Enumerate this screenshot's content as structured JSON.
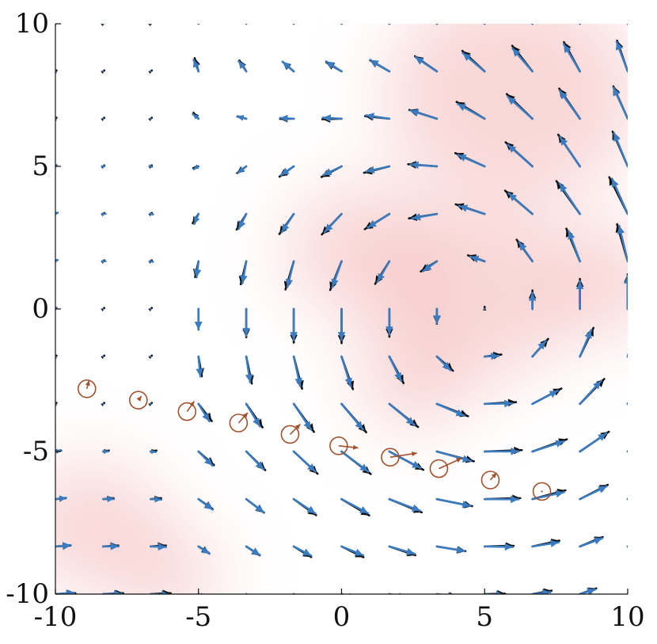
{
  "chart_data": {
    "type": "quiver",
    "title": "",
    "xlabel": "",
    "ylabel": "",
    "xlim": [
      -10,
      10
    ],
    "ylim": [
      -10,
      10
    ],
    "xticks": [
      -10,
      -5,
      0,
      5,
      10
    ],
    "yticks": [
      -10,
      -5,
      0,
      5,
      10
    ],
    "xtick_labels": [
      "-10",
      "-5",
      "0",
      "5",
      "10"
    ],
    "ytick_labels": [
      "-10",
      "-5",
      "0",
      "5",
      "10"
    ],
    "grid": false,
    "legend": "none",
    "colors": {
      "field_a": "#111111",
      "field_b": "#3b7bbf",
      "trajectory": "#a0522d",
      "heatmap": "#f4b6b6"
    },
    "grid_points": {
      "x": [
        -10,
        -8.33,
        -6.67,
        -5,
        -3.33,
        -1.67,
        0,
        1.67,
        3.33,
        5,
        6.67,
        8.33,
        10
      ],
      "y": [
        -10,
        -8.33,
        -6.67,
        -5,
        -3.33,
        -1.67,
        0,
        1.67,
        3.33,
        5,
        6.67,
        8.33,
        10
      ]
    },
    "vortex_center": [
      4.8,
      0
    ],
    "trajectory_points": [
      {
        "x": -8.9,
        "y": -2.8,
        "u": 0.1,
        "v": 0.4
      },
      {
        "x": -7.1,
        "y": -3.2,
        "u": 0.15,
        "v": 0.2
      },
      {
        "x": -5.4,
        "y": -3.6,
        "u": 0.35,
        "v": 0.5
      },
      {
        "x": -3.6,
        "y": -4.0,
        "u": 0.45,
        "v": 0.5
      },
      {
        "x": -1.8,
        "y": -4.4,
        "u": 0.5,
        "v": 0.5
      },
      {
        "x": -0.1,
        "y": -4.8,
        "u": 0.95,
        "v": -0.1
      },
      {
        "x": 1.7,
        "y": -5.2,
        "u": 1.3,
        "v": 0.2
      },
      {
        "x": 3.4,
        "y": -5.6,
        "u": 1.1,
        "v": 0.5
      },
      {
        "x": 5.2,
        "y": -6.0,
        "u": 0.3,
        "v": 0.35
      },
      {
        "x": 7.0,
        "y": -6.4,
        "u": 0.0,
        "v": 0.0
      }
    ]
  }
}
